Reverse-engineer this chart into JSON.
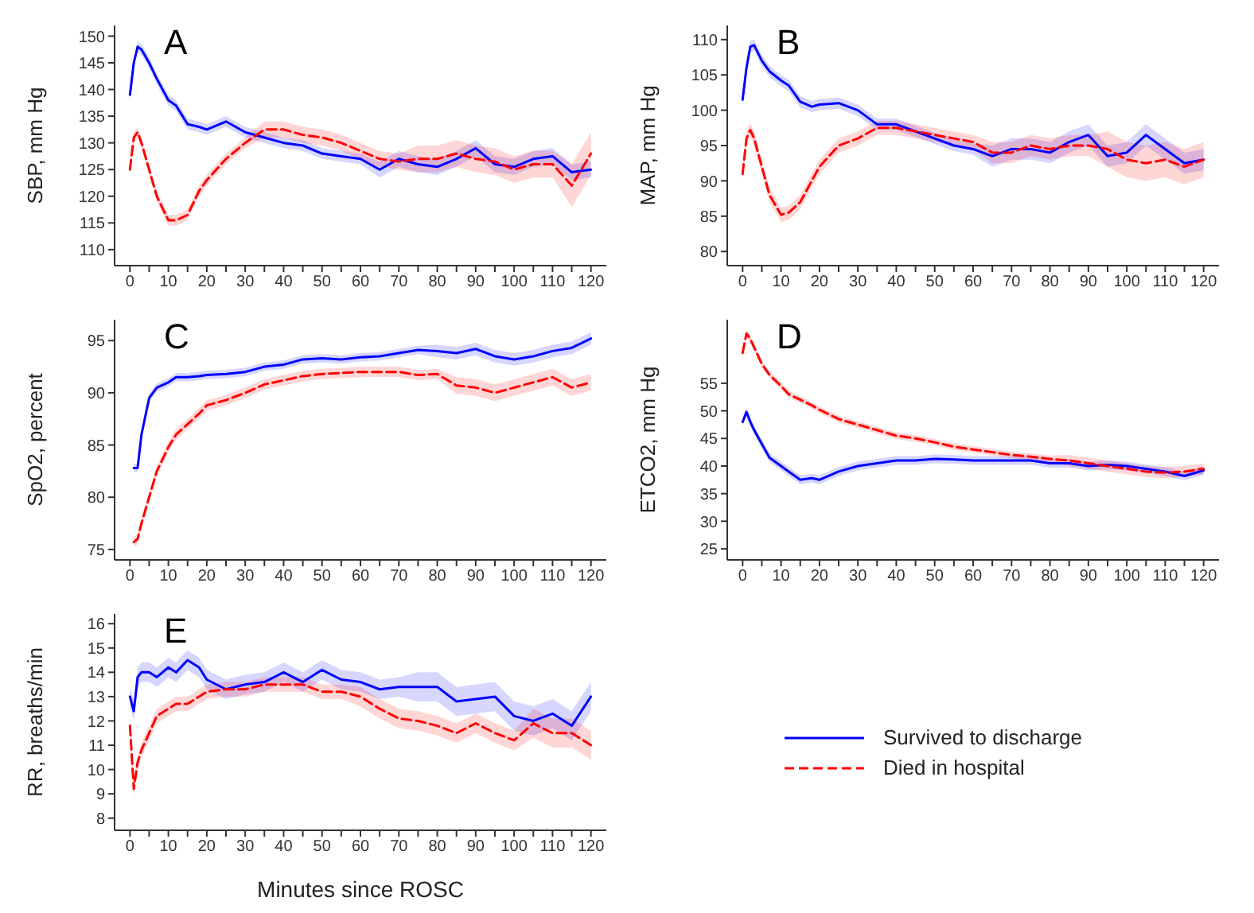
{
  "chart_data": [
    {
      "type": "line",
      "title": "A",
      "ylabel": "SBP, mm Hg",
      "xlim": [
        -4,
        124
      ],
      "xticks": [
        0,
        {
          "value": 5,
          "label": null
        },
        10,
        {
          "value": 15,
          "label": null
        },
        20,
        {
          "value": 25,
          "label": null
        },
        30,
        {
          "value": 35,
          "label": null
        },
        40,
        {
          "value": 45,
          "label": null
        },
        50,
        {
          "value": 55,
          "label": null
        },
        60,
        {
          "value": 65,
          "label": null
        },
        70,
        {
          "value": 75,
          "label": null
        },
        80,
        {
          "value": 85,
          "label": null
        },
        90,
        {
          "value": 95,
          "label": null
        },
        100,
        {
          "value": 105,
          "label": null
        },
        110,
        {
          "value": 115,
          "label": null
        },
        120
      ],
      "ylim": [
        107,
        152
      ],
      "yticks": [
        110,
        115,
        120,
        125,
        130,
        135,
        140,
        145,
        150
      ],
      "x": [
        0,
        1,
        2,
        3,
        5,
        7,
        10,
        12,
        15,
        18,
        20,
        25,
        30,
        35,
        40,
        45,
        50,
        55,
        60,
        65,
        70,
        75,
        80,
        85,
        90,
        95,
        100,
        105,
        110,
        115,
        120
      ],
      "series": [
        {
          "color": "#0000ff",
          "line_style": "solid",
          "values": [
            139,
            145,
            148,
            147.5,
            145,
            142,
            138,
            137,
            133.5,
            133,
            132.5,
            134,
            132,
            131,
            130,
            129.5,
            128,
            127.5,
            127,
            125,
            127,
            126,
            125.5,
            127,
            129,
            126,
            125.5,
            127,
            127.5,
            124.5,
            125
          ],
          "lower": [
            138,
            144,
            147,
            146.5,
            144,
            141,
            137,
            136,
            132.5,
            132,
            131.5,
            133,
            131,
            130,
            129,
            128.5,
            127,
            126.5,
            126,
            123.5,
            125.5,
            124.5,
            124,
            125.5,
            127.5,
            124.5,
            124,
            125.5,
            126,
            123,
            123.5
          ],
          "upper": [
            140,
            146,
            149,
            148.5,
            146,
            143,
            139,
            138,
            134.5,
            134,
            133.5,
            135,
            133,
            132,
            131,
            130.5,
            129,
            128.5,
            128,
            126.5,
            128.5,
            127.5,
            127,
            128.5,
            130.5,
            127.5,
            127,
            128.5,
            129,
            126,
            126.5
          ]
        },
        {
          "color": "#ff0000",
          "line_style": "dashed",
          "values": [
            125,
            131,
            132,
            130,
            125,
            120,
            115.5,
            115.5,
            116.5,
            121,
            123,
            127,
            130,
            132.5,
            132.5,
            131.5,
            131,
            130,
            128.5,
            127,
            126.5,
            127,
            127,
            128,
            127,
            126.5,
            125,
            126,
            126,
            122,
            128
          ],
          "lower": [
            124,
            130,
            131,
            129,
            124,
            119,
            114.5,
            114.5,
            115.5,
            120,
            122,
            126,
            129,
            131,
            131,
            130,
            129.5,
            128.5,
            127,
            125.5,
            125,
            124.5,
            124.5,
            125.5,
            124.5,
            124,
            122.5,
            123.5,
            123.5,
            118,
            124
          ],
          "upper": [
            126,
            132,
            133,
            131,
            126,
            121,
            116.5,
            116.5,
            117.5,
            122,
            124,
            128,
            131,
            134,
            134,
            133,
            132.5,
            131.5,
            130,
            128.5,
            128,
            129.5,
            129.5,
            130.5,
            129.5,
            129,
            127.5,
            128.5,
            128.5,
            126,
            132
          ]
        }
      ]
    },
    {
      "type": "line",
      "title": "B",
      "ylabel": "MAP, mm Hg",
      "xlim": [
        -4,
        124
      ],
      "xticks": [
        0,
        {
          "value": 5,
          "label": null
        },
        10,
        {
          "value": 15,
          "label": null
        },
        20,
        {
          "value": 25,
          "label": null
        },
        30,
        {
          "value": 35,
          "label": null
        },
        40,
        {
          "value": 45,
          "label": null
        },
        50,
        {
          "value": 55,
          "label": null
        },
        60,
        {
          "value": 65,
          "label": null
        },
        70,
        {
          "value": 75,
          "label": null
        },
        80,
        {
          "value": 85,
          "label": null
        },
        90,
        {
          "value": 95,
          "label": null
        },
        100,
        {
          "value": 105,
          "label": null
        },
        110,
        {
          "value": 115,
          "label": null
        },
        120
      ],
      "ylim": [
        78,
        112
      ],
      "yticks": [
        80,
        85,
        90,
        95,
        100,
        105,
        110
      ],
      "x": [
        0,
        1,
        2,
        3,
        5,
        7,
        10,
        12,
        15,
        18,
        20,
        25,
        30,
        35,
        40,
        45,
        50,
        55,
        60,
        65,
        70,
        75,
        80,
        85,
        90,
        95,
        100,
        105,
        110,
        115,
        120
      ],
      "series": [
        {
          "color": "#0000ff",
          "line_style": "solid",
          "values": [
            101.5,
            106,
            109,
            109.2,
            107,
            105.5,
            104.2,
            103.5,
            101.2,
            100.5,
            100.8,
            101,
            100,
            98,
            98,
            97,
            96,
            95,
            94.5,
            93.5,
            94.5,
            94.5,
            94,
            95.5,
            96.5,
            93.5,
            94,
            96.5,
            94.5,
            92.5,
            93
          ],
          "lower": [
            100.7,
            105.2,
            108.2,
            108.4,
            106.2,
            104.7,
            103.4,
            102.7,
            100.4,
            99.7,
            100,
            100.2,
            99.2,
            97.2,
            97.2,
            96.2,
            95.2,
            94.2,
            93.7,
            92,
            93,
            93,
            92.5,
            94,
            95,
            92,
            92.5,
            95,
            93,
            91,
            91.5
          ],
          "upper": [
            102.3,
            106.8,
            109.8,
            110,
            107.8,
            106.3,
            105,
            104.3,
            102,
            101.3,
            101.6,
            101.8,
            100.8,
            98.8,
            98.8,
            97.8,
            96.8,
            95.8,
            95.3,
            95,
            96,
            96,
            95.5,
            97,
            98,
            95,
            95.5,
            98,
            96,
            94,
            94.5
          ]
        },
        {
          "color": "#ff0000",
          "line_style": "dashed",
          "values": [
            91,
            96,
            97.2,
            96,
            92,
            88,
            85.2,
            85.5,
            87,
            90,
            92,
            95,
            96,
            97.5,
            97.5,
            97,
            96.5,
            96,
            95.5,
            94,
            94,
            95,
            94.5,
            95,
            95,
            94.5,
            93,
            92.5,
            93,
            92,
            93
          ],
          "lower": [
            90,
            95,
            96.2,
            95,
            91,
            87,
            84.2,
            84.5,
            86,
            89,
            91,
            94,
            95,
            96.5,
            96.5,
            96,
            95.5,
            95,
            94.5,
            92.5,
            92.5,
            93.5,
            93,
            93.5,
            93.5,
            92,
            90.5,
            90,
            90.5,
            89.5,
            90.5
          ],
          "upper": [
            92,
            97,
            98.2,
            97,
            93,
            89,
            86.2,
            86.5,
            88,
            91,
            93,
            96,
            97,
            98.5,
            98.5,
            98,
            97.5,
            97,
            96.5,
            95.5,
            95.5,
            96.5,
            96,
            96.5,
            96.5,
            97,
            95.5,
            95,
            95.5,
            94.5,
            95.5
          ]
        }
      ]
    },
    {
      "type": "line",
      "title": "C",
      "ylabel": "SpO2, percent",
      "xlim": [
        -4,
        124
      ],
      "xticks": [
        0,
        {
          "value": 5,
          "label": null
        },
        10,
        {
          "value": 15,
          "label": null
        },
        20,
        {
          "value": 25,
          "label": null
        },
        30,
        {
          "value": 35,
          "label": null
        },
        40,
        {
          "value": 45,
          "label": null
        },
        50,
        {
          "value": 55,
          "label": null
        },
        60,
        {
          "value": 65,
          "label": null
        },
        70,
        {
          "value": 75,
          "label": null
        },
        80,
        {
          "value": 85,
          "label": null
        },
        90,
        {
          "value": 95,
          "label": null
        },
        100,
        {
          "value": 105,
          "label": null
        },
        110,
        {
          "value": 115,
          "label": null
        },
        120
      ],
      "ylim": [
        74,
        97
      ],
      "yticks": [
        75,
        80,
        85,
        90,
        95
      ],
      "x": [
        1,
        2,
        3,
        5,
        7,
        10,
        12,
        15,
        18,
        20,
        25,
        30,
        35,
        40,
        45,
        50,
        55,
        60,
        65,
        70,
        75,
        80,
        85,
        90,
        95,
        100,
        105,
        110,
        115,
        120
      ],
      "series": [
        {
          "color": "#0000ff",
          "line_style": "solid",
          "values": [
            82.8,
            82.8,
            86,
            89.5,
            90.5,
            91,
            91.5,
            91.5,
            91.6,
            91.7,
            91.8,
            92,
            92.5,
            92.7,
            93.2,
            93.3,
            93.2,
            93.4,
            93.5,
            93.8,
            94.1,
            94,
            93.8,
            94.2,
            93.5,
            93.2,
            93.5,
            94,
            94.3,
            95.2
          ],
          "lower": [
            82.4,
            82.4,
            85.6,
            89.1,
            90.1,
            90.6,
            91.1,
            91.1,
            91.2,
            91.3,
            91.4,
            91.6,
            92.1,
            92.3,
            92.8,
            92.9,
            92.8,
            93,
            93.1,
            93.4,
            93.7,
            93.4,
            93.2,
            93.6,
            92.9,
            92.6,
            92.9,
            93.4,
            93.7,
            94.6
          ],
          "upper": [
            83.2,
            83.2,
            86.4,
            89.9,
            90.9,
            91.4,
            91.9,
            91.9,
            92,
            92.1,
            92.2,
            92.4,
            92.9,
            93.1,
            93.6,
            93.7,
            93.6,
            93.8,
            93.9,
            94.2,
            94.5,
            94.6,
            94.4,
            94.8,
            94.1,
            93.8,
            94.1,
            94.6,
            94.9,
            95.8
          ]
        },
        {
          "color": "#ff0000",
          "line_style": "dashed",
          "values": [
            75.7,
            76,
            77.5,
            80,
            82.5,
            84.8,
            86,
            87,
            88,
            88.8,
            89.3,
            90,
            90.8,
            91.2,
            91.6,
            91.8,
            91.9,
            92,
            92,
            92,
            91.7,
            91.8,
            90.7,
            90.5,
            90,
            90.5,
            91,
            91.5,
            90.5,
            91
          ],
          "lower": [
            75.2,
            75.5,
            77,
            79.5,
            82,
            84.3,
            85.5,
            86.5,
            87.5,
            88.3,
            88.8,
            89.5,
            90.3,
            90.7,
            91.1,
            91.3,
            91.4,
            91.5,
            91.5,
            91.5,
            91.2,
            91.3,
            89.9,
            89.7,
            89.2,
            89.7,
            90.2,
            90.7,
            89.7,
            90.2
          ],
          "upper": [
            76.2,
            76.5,
            78,
            80.5,
            83,
            85.3,
            86.5,
            87.5,
            88.5,
            89.3,
            89.8,
            90.5,
            91.3,
            91.7,
            92.1,
            92.3,
            92.4,
            92.5,
            92.5,
            92.5,
            92.2,
            92.3,
            91.5,
            91.3,
            90.8,
            91.3,
            91.8,
            92.3,
            91.3,
            91.8
          ]
        }
      ]
    },
    {
      "type": "line",
      "title": "D",
      "ylabel": "ETCO2, mm Hg",
      "xlim": [
        -4,
        124
      ],
      "xticks": [
        0,
        {
          "value": 5,
          "label": null
        },
        10,
        {
          "value": 15,
          "label": null
        },
        20,
        {
          "value": 25,
          "label": null
        },
        30,
        {
          "value": 35,
          "label": null
        },
        40,
        {
          "value": 45,
          "label": null
        },
        50,
        {
          "value": 55,
          "label": null
        },
        60,
        {
          "value": 65,
          "label": null
        },
        70,
        {
          "value": 75,
          "label": null
        },
        80,
        {
          "value": 85,
          "label": null
        },
        90,
        {
          "value": 95,
          "label": null
        },
        100,
        {
          "value": 105,
          "label": null
        },
        110,
        {
          "value": 115,
          "label": null
        },
        120
      ],
      "ylim": [
        23,
        66.5
      ],
      "yticks": [
        25,
        30,
        35,
        40,
        45,
        50,
        55
      ],
      "x": [
        0,
        1,
        2,
        3,
        5,
        7,
        10,
        12,
        15,
        18,
        20,
        25,
        30,
        35,
        40,
        45,
        50,
        55,
        60,
        65,
        70,
        75,
        80,
        85,
        90,
        95,
        100,
        105,
        110,
        115,
        120
      ],
      "series": [
        {
          "color": "#0000ff",
          "line_style": "solid",
          "values": [
            48,
            49.8,
            48,
            46.5,
            44,
            41.5,
            40,
            39,
            37.5,
            37.8,
            37.5,
            39,
            40,
            40.5,
            41,
            41,
            41.3,
            41.2,
            41,
            41,
            41,
            41,
            40.5,
            40.5,
            40,
            40.2,
            40,
            39.5,
            39,
            38.2,
            39.2
          ],
          "lower": [
            47.2,
            49,
            47.2,
            45.7,
            43.2,
            40.7,
            39.2,
            38.2,
            36.7,
            37,
            36.7,
            38.2,
            39.2,
            39.7,
            40.2,
            40.2,
            40.5,
            40.4,
            40.2,
            40.2,
            40.2,
            40.2,
            39.7,
            39.7,
            39.2,
            39.4,
            39.2,
            38.7,
            38.2,
            37.4,
            38.4
          ],
          "upper": [
            48.8,
            50.6,
            48.8,
            47.3,
            44.8,
            42.3,
            40.8,
            39.8,
            38.3,
            38.6,
            38.3,
            39.8,
            40.8,
            41.3,
            41.8,
            41.8,
            42.1,
            42,
            41.8,
            41.8,
            41.8,
            41.8,
            41.3,
            41.3,
            40.8,
            41,
            40.8,
            40.3,
            39.8,
            39,
            40
          ]
        },
        {
          "color": "#ff0000",
          "line_style": "dashed",
          "values": [
            60.5,
            64,
            63,
            61.5,
            58.5,
            56.5,
            54.5,
            53,
            52,
            51,
            50.2,
            48.5,
            47.5,
            46.5,
            45.5,
            45,
            44.3,
            43.5,
            43,
            42.5,
            42,
            41.7,
            41.3,
            41,
            40.5,
            40,
            39.5,
            39,
            38.8,
            39,
            39.5
          ],
          "lower": [
            59.9,
            63.4,
            62.4,
            60.9,
            57.9,
            55.9,
            53.9,
            52.4,
            51.4,
            50.4,
            49.6,
            47.9,
            46.9,
            45.9,
            44.9,
            44.4,
            43.7,
            42.9,
            42.4,
            41.9,
            41.4,
            41.1,
            40.7,
            40,
            39.5,
            39,
            38.5,
            38,
            37.8,
            38,
            38.5
          ],
          "upper": [
            61.1,
            64.6,
            63.6,
            62.1,
            59.1,
            57.1,
            55.1,
            53.6,
            52.6,
            51.6,
            50.8,
            49.1,
            48.1,
            47.1,
            46.1,
            45.6,
            44.9,
            44.1,
            43.6,
            43.1,
            42.6,
            42.3,
            41.9,
            42,
            41.5,
            41,
            40.5,
            40,
            39.8,
            40,
            40.5
          ]
        }
      ]
    },
    {
      "type": "line",
      "title": "E",
      "xlabel": "Minutes since ROSC",
      "ylabel": "RR, breaths/min",
      "legend": "right",
      "xlim": [
        -4,
        124
      ],
      "xticks": [
        0,
        {
          "value": 5,
          "label": null
        },
        10,
        {
          "value": 15,
          "label": null
        },
        20,
        {
          "value": 25,
          "label": null
        },
        30,
        {
          "value": 35,
          "label": null
        },
        40,
        {
          "value": 45,
          "label": null
        },
        50,
        {
          "value": 55,
          "label": null
        },
        60,
        {
          "value": 65,
          "label": null
        },
        70,
        {
          "value": 75,
          "label": null
        },
        80,
        {
          "value": 85,
          "label": null
        },
        90,
        {
          "value": 95,
          "label": null
        },
        100,
        {
          "value": 105,
          "label": null
        },
        110,
        {
          "value": 115,
          "label": null
        },
        120
      ],
      "ylim": [
        7.5,
        16.4
      ],
      "yticks": [
        8,
        9,
        10,
        11,
        12,
        13,
        14,
        15,
        16
      ],
      "x": [
        0,
        1,
        2,
        3,
        5,
        7,
        10,
        12,
        15,
        18,
        20,
        25,
        30,
        35,
        40,
        45,
        50,
        55,
        60,
        65,
        70,
        75,
        80,
        85,
        90,
        95,
        100,
        105,
        110,
        115,
        120
      ],
      "series": [
        {
          "name": "Survived to discharge",
          "color": "#0000ff",
          "line_style": "solid",
          "values": [
            13,
            12.4,
            13.8,
            14,
            14,
            13.8,
            14.2,
            14,
            14.5,
            14.2,
            13.7,
            13.3,
            13.5,
            13.6,
            14,
            13.6,
            14.1,
            13.7,
            13.6,
            13.3,
            13.4,
            13.4,
            13.4,
            12.8,
            12.9,
            13,
            12.2,
            12,
            12.3,
            11.8,
            13
          ],
          "lower": [
            12.6,
            12,
            13.4,
            13.6,
            13.6,
            13.4,
            13.8,
            13.6,
            14.1,
            13.8,
            13.3,
            12.9,
            13.1,
            13.2,
            13.6,
            13.2,
            13.7,
            13.3,
            13.2,
            12.9,
            13,
            12.8,
            12.8,
            12.2,
            12.3,
            12.4,
            11.6,
            11.4,
            11.7,
            11.2,
            12.4
          ],
          "upper": [
            13.4,
            12.8,
            14.2,
            14.4,
            14.4,
            14.2,
            14.6,
            14.4,
            14.9,
            14.6,
            14.1,
            13.7,
            13.9,
            14,
            14.4,
            14,
            14.5,
            14.1,
            14,
            13.7,
            13.8,
            14,
            14,
            13.4,
            13.5,
            13.6,
            12.8,
            12.6,
            12.9,
            12.4,
            13.6
          ]
        },
        {
          "name": "Died in hospital",
          "color": "#ff0000",
          "line_style": "dashed",
          "values": [
            11.8,
            9.2,
            10.3,
            10.8,
            11.5,
            12.2,
            12.5,
            12.7,
            12.7,
            13,
            13.2,
            13.3,
            13.3,
            13.5,
            13.5,
            13.5,
            13.2,
            13.2,
            13,
            12.5,
            12.1,
            12,
            11.8,
            11.5,
            11.9,
            11.5,
            11.2,
            11.9,
            11.5,
            11.5,
            11
          ],
          "lower": [
            11.5,
            8.9,
            10,
            10.5,
            11.2,
            11.9,
            12.2,
            12.4,
            12.4,
            12.7,
            12.9,
            13,
            13,
            13.2,
            13.2,
            13.2,
            12.9,
            12.9,
            12.6,
            12.1,
            11.7,
            11.6,
            11.4,
            11.1,
            11.5,
            11.1,
            10.8,
            11.3,
            10.9,
            10.9,
            10.4
          ],
          "upper": [
            12.1,
            9.5,
            10.6,
            11.1,
            11.8,
            12.5,
            12.8,
            13,
            13,
            13.3,
            13.5,
            13.6,
            13.6,
            13.8,
            13.8,
            13.8,
            13.5,
            13.5,
            13.4,
            12.9,
            12.5,
            12.4,
            12.2,
            11.9,
            12.3,
            11.9,
            11.6,
            12.5,
            12.1,
            12.1,
            11.6
          ]
        }
      ]
    }
  ]
}
